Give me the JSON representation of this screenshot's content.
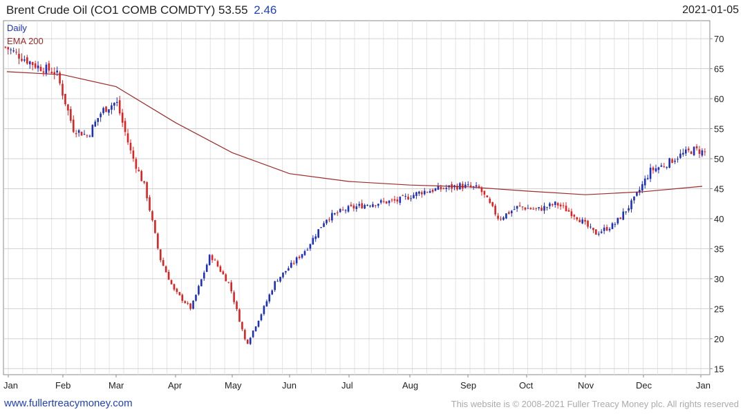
{
  "header": {
    "title": "Brent Crude Oil  (CO1 COMB COMDTY)",
    "price": "53.55",
    "change": "2.46",
    "date": "2021-01-05"
  },
  "footer": {
    "site": "www.fullertreacymoney.com",
    "copyright": "This website is © 2008-2021 Fuller Treacy Money plc. All rights reserved"
  },
  "colors": {
    "up_candle": "#1c2fbf",
    "down_candle": "#dd2222",
    "ema": "#9b2a2a",
    "grid": "#e3e3e3",
    "title_change": "#1f3fbf"
  },
  "chart_data": {
    "type": "candlestick",
    "title": "Brent Crude Oil  (CO1 COMB COMDTY)",
    "legend": [
      "Daily",
      "EMA 200"
    ],
    "legend_position": "top-left",
    "grid": true,
    "y_axis_position": "right",
    "ylim": [
      14,
      73
    ],
    "y_ticks": [
      15,
      20,
      25,
      30,
      35,
      40,
      45,
      50,
      55,
      60,
      65,
      70
    ],
    "x_ticks": [
      "Jan",
      "Feb",
      "Mar",
      "Apr",
      "May",
      "Jun",
      "Jul",
      "Aug",
      "Sep",
      "Oct",
      "Nov",
      "Dec",
      "Jan"
    ],
    "series": [
      {
        "name": "Daily",
        "kind": "close",
        "points": [
          [
            "Jan",
            68.6
          ],
          [
            "Jan",
            65.4
          ],
          [
            "Jan",
            64.4
          ],
          [
            "Feb",
            55.0
          ],
          [
            "Feb",
            53.8
          ],
          [
            "Feb",
            58.0
          ],
          [
            "Feb",
            59.5
          ],
          [
            "Mar",
            51.0
          ],
          [
            "Mar",
            45.0
          ],
          [
            "Mar",
            33.5
          ],
          [
            "Mar",
            28.0
          ],
          [
            "Apr",
            25.0
          ],
          [
            "Apr",
            34.0
          ],
          [
            "Apr",
            29.0
          ],
          [
            "May",
            19.0
          ],
          [
            "May",
            24.0
          ],
          [
            "May",
            29.5
          ],
          [
            "May",
            32.0
          ],
          [
            "Jun",
            35.0
          ],
          [
            "Jun",
            40.0
          ],
          [
            "Jun",
            41.5
          ],
          [
            "Jul",
            42.5
          ],
          [
            "Jul",
            43.0
          ],
          [
            "Aug",
            44.5
          ],
          [
            "Aug",
            45.0
          ],
          [
            "Aug",
            45.5
          ],
          [
            "Sep",
            45.0
          ],
          [
            "Sep",
            40.0
          ],
          [
            "Sep",
            42.0
          ],
          [
            "Oct",
            41.5
          ],
          [
            "Oct",
            42.5
          ],
          [
            "Oct",
            40.5
          ],
          [
            "Nov",
            37.5
          ],
          [
            "Nov",
            39.0
          ],
          [
            "Nov",
            43.0
          ],
          [
            "Dec",
            48.0
          ],
          [
            "Dec",
            49.0
          ],
          [
            "Dec",
            50.5
          ],
          [
            "Dec",
            51.5
          ],
          [
            "Jan",
            51.0
          ],
          [
            "Jan",
            53.55
          ]
        ]
      },
      {
        "name": "EMA 200",
        "kind": "line",
        "points": [
          [
            "Jan",
            64.5
          ],
          [
            "Feb",
            64.0
          ],
          [
            "Mar",
            62.0
          ],
          [
            "Apr",
            56.0
          ],
          [
            "May",
            51.0
          ],
          [
            "Jun",
            47.5
          ],
          [
            "Jul",
            46.2
          ],
          [
            "Aug",
            45.6
          ],
          [
            "Sep",
            45.3
          ],
          [
            "Oct",
            44.6
          ],
          [
            "Nov",
            44.0
          ],
          [
            "Dec",
            44.5
          ],
          [
            "Jan",
            45.4
          ]
        ]
      }
    ]
  }
}
